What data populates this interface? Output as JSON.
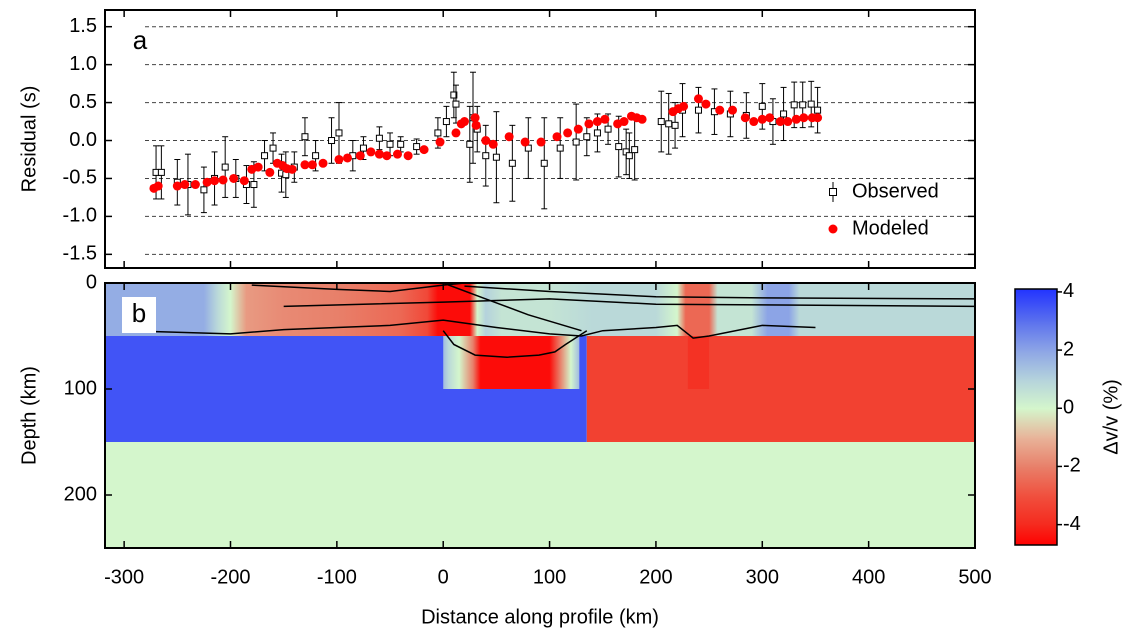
{
  "chart_data": [
    {
      "type": "scatter",
      "panel_label": "a",
      "ylabel": "Residual (s)",
      "xlim": [
        -318,
        500
      ],
      "xticks": [
        -300,
        -200,
        -100,
        0,
        100,
        200,
        300,
        400,
        500
      ],
      "ylim": [
        -1.68,
        1.72
      ],
      "yticks": [
        1.5,
        {
          "value": 1,
          "label": "1.0"
        },
        0.5,
        {
          "value": 0,
          "label": "0.0"
        },
        -0.5,
        {
          "value": -1,
          "label": "-1.0"
        },
        -1.5
      ],
      "grid": "dashed",
      "legend": "lower right",
      "series": [
        {
          "name": "Observed",
          "color": "#000000",
          "marker": "square",
          "x": [
            -270,
            -265,
            -250,
            -240,
            -225,
            -215,
            -205,
            -195,
            -185,
            -178,
            -168,
            -160,
            -152,
            -148,
            -140,
            -130,
            -120,
            -105,
            -98,
            -85,
            -75,
            -60,
            -50,
            -40,
            -25,
            -5,
            3,
            10,
            12,
            25,
            28,
            32,
            40,
            50,
            65,
            80,
            95,
            110,
            125,
            135,
            145,
            155,
            165,
            172,
            175,
            180,
            205,
            212,
            218,
            225,
            240,
            255,
            270,
            285,
            300,
            310,
            320,
            330,
            338,
            346,
            352
          ],
          "values": [
            -0.42,
            -0.42,
            -0.55,
            -0.58,
            -0.65,
            -0.5,
            -0.35,
            -0.5,
            -0.58,
            -0.58,
            -0.2,
            -0.1,
            -0.43,
            -0.45,
            -0.35,
            0.05,
            -0.2,
            0,
            0.1,
            -0.2,
            -0.1,
            0.03,
            -0.05,
            -0.05,
            -0.08,
            0.1,
            0.25,
            0.6,
            0.48,
            -0.05,
            0.3,
            0.15,
            -0.2,
            -0.22,
            -0.3,
            -0.1,
            -0.3,
            -0.1,
            -0.02,
            0.05,
            0.1,
            0.15,
            -0.08,
            -0.15,
            -0.2,
            -0.12,
            0.25,
            0.22,
            0.2,
            0.4,
            0.4,
            0.38,
            0.35,
            0.33,
            0.45,
            0.25,
            0.35,
            0.47,
            0.47,
            0.48,
            0.4
          ],
          "errors": [
            0.35,
            0.35,
            0.3,
            0.4,
            0.3,
            0.35,
            0.4,
            0.25,
            0.25,
            0.3,
            0.2,
            0.2,
            0.25,
            0.3,
            0.2,
            0.25,
            0.2,
            0.3,
            0.4,
            0.2,
            0.15,
            0.15,
            0.15,
            0.1,
            0.1,
            0.2,
            0.2,
            0.3,
            0.25,
            0.5,
            0.6,
            0.3,
            0.4,
            0.6,
            0.5,
            0.4,
            0.6,
            0.4,
            0.5,
            0.25,
            0.25,
            0.2,
            0.4,
            0.3,
            0.3,
            0.4,
            0.4,
            0.4,
            0.3,
            0.35,
            0.3,
            0.3,
            0.3,
            0.3,
            0.3,
            0.3,
            0.35,
            0.3,
            0.3,
            0.3,
            0.3
          ]
        },
        {
          "name": "Modeled",
          "color": "#ff0000",
          "marker": "circle",
          "x": [
            -272,
            -268,
            -250,
            -243,
            -233,
            -222,
            -215,
            -207,
            -197,
            -187,
            -180,
            -174,
            -163,
            -156,
            -151,
            -147,
            -142,
            -130,
            -123,
            -113,
            -98,
            -90,
            -78,
            -68,
            -60,
            -53,
            -43,
            -33,
            -18,
            -3,
            12,
            17,
            20,
            30,
            31,
            40,
            47,
            62,
            77,
            92,
            107,
            117,
            127,
            137,
            145,
            152,
            164,
            170,
            177,
            182,
            187,
            216,
            221,
            226,
            240,
            247,
            260,
            272,
            284,
            292,
            300,
            307,
            317,
            324,
            332,
            339,
            347,
            352
          ],
          "values": [
            -0.63,
            -0.6,
            -0.6,
            -0.58,
            -0.58,
            -0.55,
            -0.53,
            -0.52,
            -0.5,
            -0.53,
            -0.38,
            -0.35,
            -0.42,
            -0.3,
            -0.33,
            -0.37,
            -0.38,
            -0.32,
            -0.32,
            -0.3,
            -0.25,
            -0.23,
            -0.2,
            -0.15,
            -0.18,
            -0.2,
            -0.18,
            -0.2,
            -0.12,
            -0.02,
            0.1,
            0.22,
            0.25,
            0.3,
            0.2,
            0,
            -0.05,
            0.05,
            -0.02,
            -0.02,
            0.05,
            0.1,
            0.15,
            0.22,
            0.25,
            0.28,
            0.22,
            0.25,
            0.32,
            0.3,
            0.28,
            0.38,
            0.42,
            0.45,
            0.55,
            0.48,
            0.4,
            0.4,
            0.3,
            0.25,
            0.28,
            0.3,
            0.25,
            0.25,
            0.28,
            0.3,
            0.3,
            0.3
          ]
        }
      ]
    },
    {
      "type": "section",
      "panel_label": "b",
      "xlabel": "Distance along profile (km)",
      "ylabel": "Depth (km)",
      "xlim": [
        -318,
        500
      ],
      "xticks": [
        -300,
        -200,
        -100,
        0,
        100,
        200,
        300,
        400,
        500
      ],
      "ylim": [
        0,
        250
      ],
      "yticks": [
        0,
        100,
        200
      ],
      "y_inverted": true,
      "colorscale": [
        {
          "value": -4.7,
          "color": "#ff0000"
        },
        {
          "value": -4,
          "color": "#f52a1e"
        },
        {
          "value": -3,
          "color": "#f0503e"
        },
        {
          "value": -2,
          "color": "#e8806a"
        },
        {
          "value": -1,
          "color": "#e8b49a"
        },
        {
          "value": 0,
          "color": "#d4f6cc"
        },
        {
          "value": 1,
          "color": "#b4d2dc"
        },
        {
          "value": 2,
          "color": "#8ca4e6"
        },
        {
          "value": 3,
          "color": "#5a70ee"
        },
        {
          "value": 4.1,
          "color": "#2233ff"
        }
      ],
      "regions": [
        {
          "depth": [
            0,
            50
          ],
          "x": [
            -318,
            -225,
            -212,
            -200,
            -185,
            -150,
            -100,
            -40,
            -15,
            -5,
            25,
            32,
            40,
            55,
            100,
            140,
            200,
            220,
            228,
            250,
            258,
            290,
            305,
            325,
            335,
            500
          ],
          "values": [
            1.8,
            1.8,
            0.8,
            0,
            -1.5,
            -1.8,
            -2,
            -2.5,
            -3.2,
            -4.5,
            -4.5,
            0,
            1,
            0.5,
            0.5,
            0.8,
            0.8,
            0,
            -2.5,
            -2.5,
            0.5,
            0.5,
            2,
            2,
            0.8,
            0.8
          ]
        },
        {
          "depth": [
            50,
            150
          ],
          "x": [
            -318,
            135
          ],
          "values": [
            3.5,
            3.5
          ]
        },
        {
          "depth": [
            50,
            150
          ],
          "x": [
            135,
            500
          ],
          "values": [
            -3.4,
            -3.4
          ]
        },
        {
          "depth": [
            50,
            100
          ],
          "x": [
            0,
            5,
            15,
            28,
            35,
            100,
            110,
            120,
            128
          ],
          "values": [
            1.5,
            0.8,
            0,
            -2,
            -4.5,
            -4.5,
            -2,
            0,
            1.5
          ]
        },
        {
          "depth": [
            50,
            100
          ],
          "x": [
            230,
            250
          ],
          "values": [
            -3.8,
            -3.8
          ]
        },
        {
          "depth": [
            150,
            250
          ],
          "x": [
            -318,
            500
          ],
          "values": [
            0,
            0
          ]
        }
      ],
      "interfaces": [
        {
          "x": [
            -300,
            -200,
            -150,
            -100,
            -50,
            0,
            50,
            100,
            130,
            150,
            200,
            220,
            235,
            250,
            300,
            350
          ],
          "depth": [
            45,
            48,
            44,
            42,
            40,
            35,
            42,
            48,
            50,
            45,
            42,
            40,
            52,
            50,
            40,
            42
          ]
        },
        {
          "x": [
            -180,
            -100,
            -50,
            0,
            20
          ],
          "depth": [
            2,
            6,
            8,
            2,
            0
          ]
        },
        {
          "x": [
            0,
            40,
            80,
            130
          ],
          "depth": [
            0,
            15,
            30,
            45
          ]
        },
        {
          "x": [
            20,
            100,
            200,
            300,
            500
          ],
          "depth": [
            3,
            8,
            13,
            14,
            15
          ]
        },
        {
          "x": [
            -150,
            0,
            100,
            200,
            500
          ],
          "depth": [
            22,
            18,
            15,
            20,
            22
          ]
        },
        {
          "x": [
            0,
            10,
            30,
            60,
            90,
            105,
            115,
            135
          ],
          "depth": [
            45,
            58,
            68,
            70,
            68,
            65,
            58,
            45
          ]
        }
      ],
      "colorbar": {
        "label": "Δv/v (%)",
        "lim": [
          -4.7,
          4.1
        ],
        "ticks": [
          4,
          2,
          0,
          -2,
          -4
        ]
      }
    }
  ]
}
